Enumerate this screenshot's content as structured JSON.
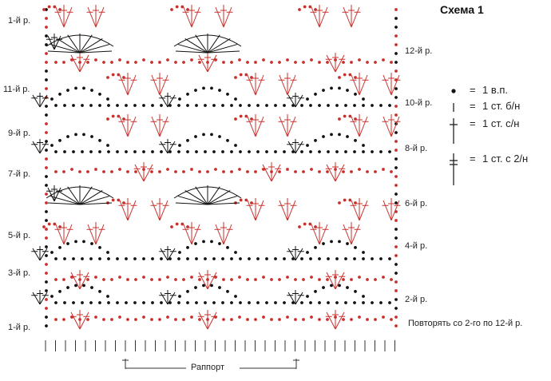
{
  "title": "Схема 1",
  "row_labels_left": [
    {
      "row": 1,
      "text": "1-й р."
    },
    {
      "row": 11,
      "text": "11-й р."
    },
    {
      "row": 9,
      "text": "9-й р."
    },
    {
      "row": 7,
      "text": "7-й р."
    },
    {
      "row": 5,
      "text": "5-й р."
    },
    {
      "row": 3,
      "text": "3-й р."
    },
    {
      "row": 1,
      "text": "1-й р."
    }
  ],
  "row_labels_right": [
    {
      "row": 12,
      "text": "12-й р."
    },
    {
      "row": 10,
      "text": "10-й р."
    },
    {
      "row": 8,
      "text": "8-й р."
    },
    {
      "row": 6,
      "text": "6-й р."
    },
    {
      "row": 4,
      "text": "4-й р."
    },
    {
      "row": 2,
      "text": "2-й р."
    }
  ],
  "legend": [
    {
      "symbol": "chain-dot",
      "text": "1 в.п."
    },
    {
      "symbol": "single-crochet",
      "text": "1 ст. б/н"
    },
    {
      "symbol": "double-crochet",
      "text": "1 ст. с/н"
    },
    {
      "symbol": "treble-crochet",
      "text": "1 ст. с 2/н"
    }
  ],
  "legend_equals": "=",
  "repeat_note": "Повторять со 2-го по 12-й р.",
  "rapport_label": "Раппорт",
  "colors": {
    "odd_rows": "#c8302c",
    "even_rows": "#111111",
    "text": "#222222"
  }
}
